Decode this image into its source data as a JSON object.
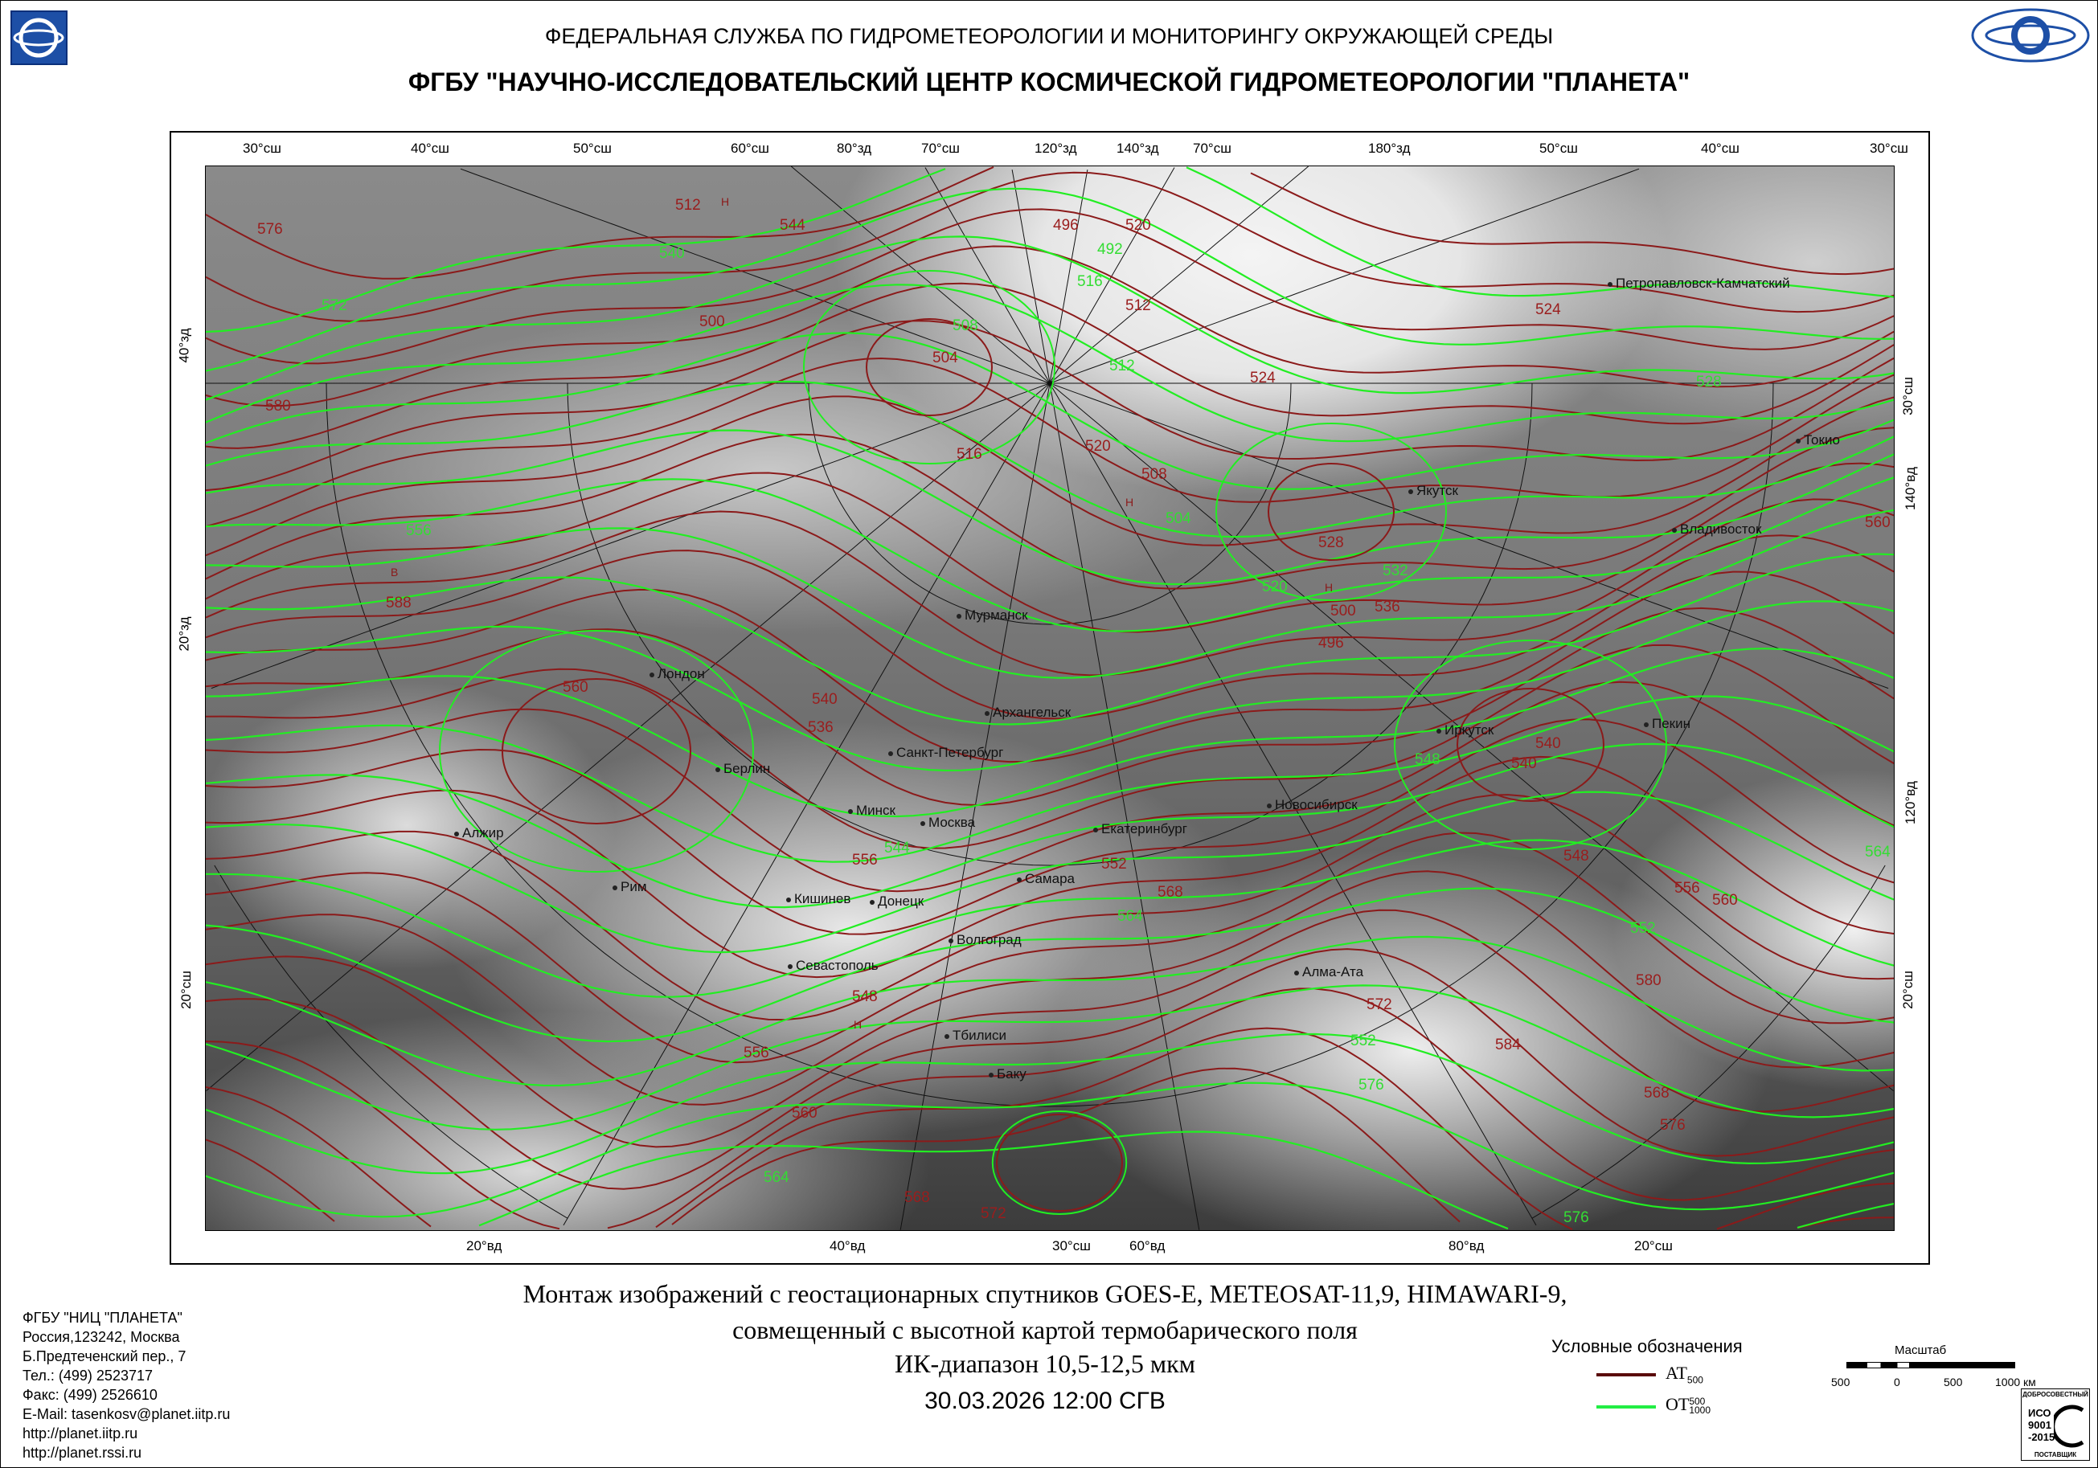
{
  "header": {
    "line1": "ФЕДЕРАЛЬНАЯ СЛУЖБА ПО ГИДРОМЕТЕОРОЛОГИИ И МОНИТОРИНГУ ОКРУЖАЮЩЕЙ СРЕДЫ",
    "line2": "ФГБУ \"НАУЧНО-ИССЛЕДОВАТЕЛЬСКИЙ ЦЕНТР КОСМИЧЕСКОЙ ГИДРОМЕТЕОРОЛОГИИ \"ПЛАНЕТА\"",
    "logo_left": "planeta-logo-icon",
    "logo_right": "roshydromet-logo-icon"
  },
  "map": {
    "grid_top": [
      "30°сш",
      "40°сш",
      "50°сш",
      "60°сш",
      "80°зд",
      "70°сш",
      "120°зд",
      "140°зд",
      "70°сш",
      "180°зд",
      "50°сш",
      "40°сш",
      "30°сш"
    ],
    "grid_bottom": [
      "20°вд",
      "40°вд",
      "30°сш",
      "60°вд",
      "80°вд",
      "20°сш"
    ],
    "grid_left": [
      "40°зд",
      "20°зд",
      "20°сш"
    ],
    "grid_right": [
      "30°сш",
      "140°вд",
      "120°вд",
      "20°сш"
    ],
    "cities": [
      "Петропавловск-Камчатский",
      "Якутск",
      "Токио",
      "Владивосток",
      "Мурманск",
      "Архангельск",
      "Санкт-Петербург",
      "Пекин",
      "Иркутск",
      "Берлин",
      "Новосибирск",
      "Минск",
      "Москва",
      "Екатеринбург",
      "Алжир",
      "Рим",
      "Самара",
      "Кишинев",
      "Донецк",
      "Волгоград",
      "Севастополь",
      "Алма-Ата",
      "Тбилиси",
      "Баку",
      "Лондон"
    ],
    "contour_labels": [
      "576",
      "572",
      "580",
      "588",
      "556",
      "560",
      "544",
      "540",
      "512",
      "496",
      "492",
      "500",
      "504",
      "508",
      "520",
      "516",
      "512",
      "524",
      "528",
      "532",
      "536",
      "540",
      "548",
      "552",
      "556",
      "564",
      "568",
      "572",
      "576",
      "560",
      "548",
      "552",
      "556",
      "560",
      "564",
      "568",
      "572",
      "576",
      "580",
      "584",
      "544",
      "540",
      "536",
      "520",
      "496",
      "500",
      "504",
      "508",
      "512",
      "516",
      "520",
      "524",
      "528",
      "540",
      "548",
      "552",
      "556",
      "560",
      "564",
      "568",
      "576"
    ],
    "pressure_centers": [
      "Н",
      "Н",
      "Н",
      "В",
      "Н"
    ],
    "colors": {
      "at500": "#8b1a1a",
      "ot500_1000": "#22ee22"
    }
  },
  "caption": {
    "line1": "Монтаж изображений с геостационарных спутников GOES-E, METEOSAT-11,9, HIMAWARI-9,",
    "line2": "совмещенный с высотной картой термобарического поля",
    "line3": "ИК-диапазон 10,5-12,5 мкм",
    "date": "30.03.2026  12:00 СГВ"
  },
  "contacts": [
    "ФГБУ \"НИЦ \"ПЛАНЕТА\"",
    "Россия,123242, Москва",
    "Б.Предтеченский пер., 7",
    "Тел.:  (499) 2523717",
    "Факс: (499) 2526610",
    "E-Mail: tasenkosv@planet.iitp.ru",
    "http://planet.iitp.ru",
    "http://planet.rssi.ru"
  ],
  "legend": {
    "title": "Условные обозначения",
    "at_main": "AT",
    "at_sub": "500",
    "ot_main": "OT",
    "ot_sup": "500",
    "ot_sub": "1000"
  },
  "scale": {
    "title": "Масштаб",
    "ticks": [
      "500",
      "0",
      "500",
      "1000 км"
    ]
  },
  "iso": {
    "top": "ДОБРОСОВЕСТНЫЙ",
    "l1": "ИСО",
    "l2": "9001",
    "l3": "-2015",
    "bottom": "ПОСТАВЩИК"
  }
}
